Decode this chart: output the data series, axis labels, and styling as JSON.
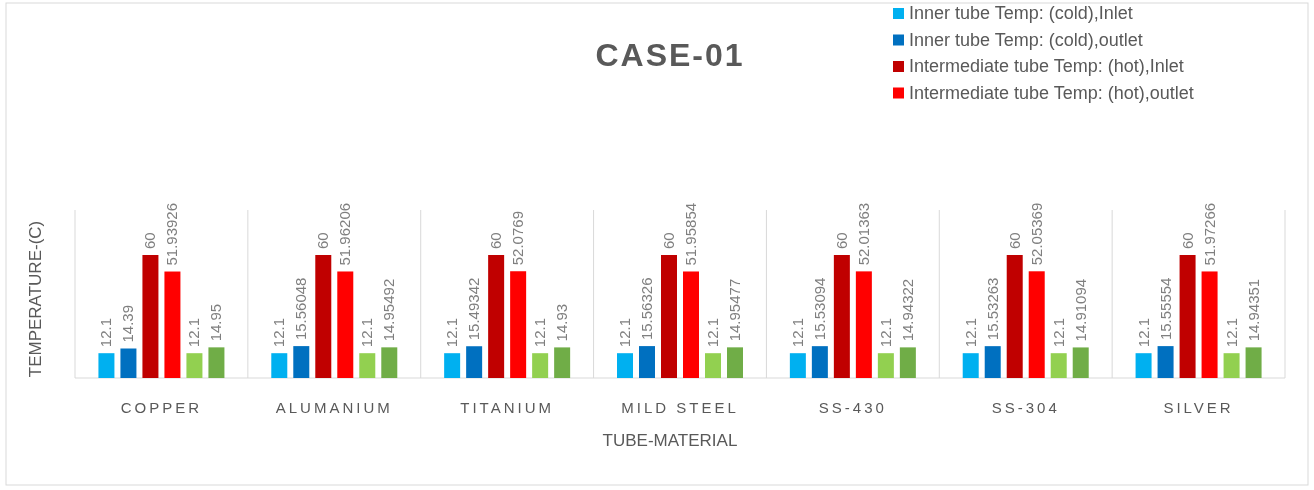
{
  "chart_data": {
    "type": "bar",
    "title": "CASE-01",
    "xlabel": "TUBE-MATERIAL",
    "ylabel": "TEMPERATURE-(C)",
    "categories": [
      "COPPER",
      "ALUMANIUM",
      "TITANIUM",
      "MILD STEEL",
      "SS-430",
      "SS-304",
      "SILVER"
    ],
    "series": [
      {
        "name": "Inner tube Temp: (cold),Inlet",
        "color": "#00b0f0",
        "values": [
          12.1,
          12.1,
          12.1,
          12.1,
          12.1,
          12.1,
          12.1
        ]
      },
      {
        "name": "Inner tube Temp: (cold),outlet",
        "color": "#0070c0",
        "values": [
          14.39,
          15.56048,
          15.49342,
          15.56326,
          15.53094,
          15.53263,
          15.55554
        ]
      },
      {
        "name": "Intermediate tube Temp: (hot),Inlet",
        "color": "#c00000",
        "values": [
          60,
          60,
          60,
          60,
          60,
          60,
          60
        ]
      },
      {
        "name": "Intermediate tube Temp: (hot),outlet",
        "color": "#ff0000",
        "values": [
          51.93926,
          51.96206,
          52.0769,
          51.95854,
          52.01363,
          52.05369,
          51.97266
        ]
      },
      {
        "color": "#92d050",
        "values": [
          12.1,
          12.1,
          12.1,
          12.1,
          12.1,
          12.1,
          12.1
        ]
      },
      {
        "color": "#70ad47",
        "values": [
          14.95,
          14.95492,
          14.93,
          14.95477,
          14.94322,
          14.91094,
          14.94351
        ]
      }
    ],
    "data_labels": true,
    "grid": "x",
    "legend": "top right",
    "tick_labels": "x"
  }
}
